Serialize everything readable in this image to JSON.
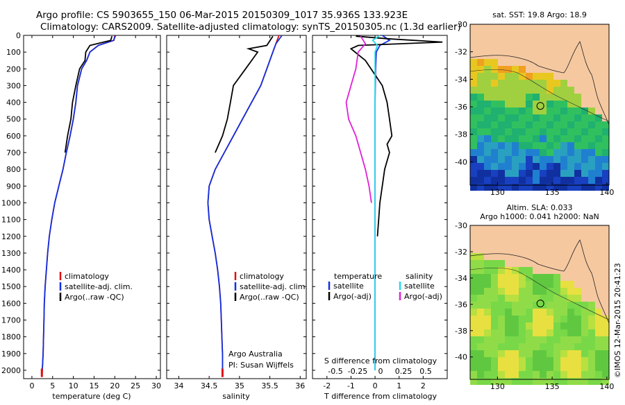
{
  "header": {
    "line1": "Argo profile: CS 5903655_150 06-Mar-2015 20150309_1017 35.936S 133.923E",
    "line2": "Climatology: CARS2009. Satellite-adjusted climatology: synTS_20150305.nc (1.3d earlier)"
  },
  "credit": "©IMOS 12-Mar-2015 20:41:23",
  "colors": {
    "climatology": "#e01010",
    "satellite": "#1030e0",
    "argo": "#000000",
    "salinity_satellite": "#20d8e8",
    "salinity_argo": "#e020d8",
    "land": "#f5c8a0"
  },
  "chart_data": [
    {
      "type": "line",
      "id": "temperature",
      "xlabel": "temperature (deg C)",
      "ylabel": "",
      "xlim": [
        -2,
        31
      ],
      "ylim": [
        2050,
        0
      ],
      "xticks": [
        0,
        5,
        10,
        15,
        20,
        25,
        30
      ],
      "yticks": [
        0,
        100,
        200,
        300,
        400,
        500,
        600,
        700,
        800,
        900,
        1000,
        1100,
        1200,
        1300,
        1400,
        1500,
        1600,
        1700,
        1800,
        1900,
        2000
      ],
      "legend": {
        "position": "center-left",
        "entries": [
          "climatology",
          "satellite-adj. clim.",
          "Argo(..raw -QC)"
        ]
      },
      "series": [
        {
          "name": "climatology",
          "color_key": "climatology",
          "x": [
            20.0,
            19.8,
            16.0,
            14.0,
            13.2,
            12.0,
            11.0,
            10.6,
            10.0,
            9.2,
            8.3,
            7.5,
            6.5,
            5.5,
            4.8,
            4.2,
            3.8,
            3.5,
            3.2,
            3.0,
            2.9,
            2.8,
            2.7,
            2.6,
            2.5,
            2.4
          ],
          "y": [
            0,
            30,
            60,
            100,
            150,
            200,
            300,
            400,
            500,
            600,
            700,
            800,
            900,
            1000,
            1100,
            1200,
            1300,
            1400,
            1500,
            1600,
            1700,
            1800,
            1900,
            1950,
            2000,
            2040
          ]
        },
        {
          "name": "satellite-adj. clim.",
          "color_key": "satellite",
          "x": [
            20.2,
            19.7,
            16.0,
            14.0,
            13.2,
            12.0,
            11.0,
            10.6,
            10.0,
            9.2,
            8.3,
            7.5,
            6.5,
            5.5,
            4.8,
            4.2,
            3.8,
            3.5,
            3.2,
            3.0,
            2.9,
            2.8,
            2.7,
            2.6,
            2.5,
            2.4
          ],
          "y": [
            0,
            30,
            60,
            100,
            150,
            200,
            300,
            400,
            500,
            600,
            700,
            800,
            900,
            1000,
            1100,
            1200,
            1300,
            1400,
            1500,
            1600,
            1700,
            1800,
            1900,
            1950,
            2000,
            2040
          ]
        },
        {
          "name": "Argo(..raw -QC)",
          "color_key": "argo",
          "x": [
            19.3,
            19.0,
            14.0,
            13.0,
            12.8,
            11.5,
            10.6,
            9.8,
            9.4,
            8.6,
            8.0
          ],
          "y": [
            5,
            30,
            60,
            100,
            150,
            200,
            300,
            400,
            500,
            600,
            700
          ]
        }
      ]
    },
    {
      "type": "line",
      "id": "salinity",
      "xlabel": "salinity",
      "ylabel": "",
      "xlim": [
        33.8,
        36.1
      ],
      "ylim": [
        2050,
        0
      ],
      "xticks": [
        34,
        34.5,
        35,
        35.5,
        36
      ],
      "legend": {
        "position": "center-right",
        "entries": [
          "climatology",
          "satellite-adj. clim.",
          "Argo(..raw -QC)"
        ]
      },
      "annotation": [
        "Argo Australia",
        "PI: Susan Wijffels"
      ],
      "series": [
        {
          "name": "climatology",
          "color_key": "climatology",
          "x": [
            35.65,
            35.6,
            35.55,
            35.45,
            35.35,
            35.2,
            35.05,
            34.9,
            34.75,
            34.6,
            34.5,
            34.48,
            34.5,
            34.55,
            34.6,
            34.64,
            34.67,
            34.69,
            34.7,
            34.71,
            34.72,
            34.72,
            34.72,
            34.72
          ],
          "y": [
            0,
            50,
            100,
            200,
            300,
            400,
            500,
            600,
            700,
            800,
            900,
            1000,
            1100,
            1200,
            1300,
            1400,
            1500,
            1600,
            1700,
            1800,
            1900,
            1950,
            2000,
            2040
          ]
        },
        {
          "name": "satellite-adj. clim.",
          "color_key": "satellite",
          "x": [
            35.7,
            35.6,
            35.55,
            35.45,
            35.35,
            35.2,
            35.05,
            34.9,
            34.75,
            34.6,
            34.5,
            34.48,
            34.5,
            34.55,
            34.6,
            34.64,
            34.67,
            34.69,
            34.7,
            34.71,
            34.72,
            34.72,
            34.72,
            34.72
          ],
          "y": [
            0,
            50,
            100,
            200,
            300,
            400,
            500,
            600,
            700,
            800,
            900,
            1000,
            1100,
            1200,
            1300,
            1400,
            1500,
            1600,
            1700,
            1800,
            1900,
            1950,
            2000,
            2040
          ]
        },
        {
          "name": "Argo(..raw -QC)",
          "color_key": "argo",
          "x": [
            35.55,
            35.45,
            35.15,
            35.3,
            35.1,
            34.9,
            34.85,
            34.8,
            34.72,
            34.6
          ],
          "y": [
            5,
            60,
            80,
            100,
            200,
            300,
            400,
            500,
            600,
            700
          ]
        }
      ]
    },
    {
      "type": "line",
      "id": "difference",
      "xlabel": "T difference from climatology",
      "top_label": "S difference from climatology",
      "xlim": [
        -2.6,
        3.0
      ],
      "ylim": [
        2050,
        0
      ],
      "xticks": [
        -2,
        -1,
        0,
        1,
        2
      ],
      "s_ticks": [
        "-0.5",
        "-0.25",
        "0",
        "0.25",
        "0.5"
      ],
      "legend": {
        "position": "center",
        "temperature_title": "temperature",
        "salinity_title": "salinity",
        "entries": [
          "satellite",
          "Argo(-adj)",
          "satellite",
          "Argo(-adj)"
        ]
      },
      "series": [
        {
          "name": "temperature satellite",
          "color_key": "satellite",
          "x": [
            0.3,
            0.6,
            0.2,
            0.05,
            0.02,
            0.0,
            0.0,
            0.0
          ],
          "y": [
            0,
            30,
            60,
            100,
            200,
            400,
            800,
            2000
          ]
        },
        {
          "name": "temperature Argo(-adj)",
          "color_key": "argo",
          "x": [
            -0.8,
            0.5,
            2.8,
            -0.7,
            -1.0,
            -0.4,
            0.3,
            0.5,
            0.6,
            0.7,
            0.5,
            0.6,
            0.4,
            0.3,
            0.2,
            0.15,
            0.1
          ],
          "y": [
            5,
            20,
            40,
            60,
            80,
            150,
            300,
            400,
            500,
            600,
            650,
            700,
            800,
            900,
            1000,
            1100,
            1200
          ]
        },
        {
          "name": "salinity satellite",
          "color_key": "salinity_satellite",
          "x": [
            0.2,
            -0.1,
            0.1,
            0.0,
            0.0,
            0.0,
            0.0
          ],
          "y": [
            0,
            30,
            60,
            100,
            300,
            800,
            2000
          ]
        },
        {
          "name": "salinity Argo(-adj)",
          "color_key": "salinity_argo",
          "x": [
            -0.6,
            -0.4,
            -0.7,
            -0.8,
            -1.0,
            -1.2,
            -1.1,
            -0.8,
            -0.6,
            -0.4,
            -0.25,
            -0.15
          ],
          "y": [
            5,
            50,
            100,
            200,
            300,
            400,
            500,
            600,
            700,
            800,
            900,
            1000
          ]
        }
      ]
    },
    {
      "type": "heatmap",
      "id": "sst_map",
      "title": "sat. SST: 19.8 Argo: 18.9",
      "xlim": [
        127.5,
        140.2
      ],
      "ylim": [
        -41.7,
        -30.0
      ],
      "xticks": [
        130,
        135,
        140
      ],
      "yticks": [
        -30,
        -32,
        -34,
        -36,
        -38,
        -40
      ],
      "argo_position": {
        "lat": -35.936,
        "lon": 133.923
      },
      "values_note": "SST colour field, warm (orange) near the coast to cold (blue) in the south"
    },
    {
      "type": "heatmap",
      "id": "sla_map",
      "title_line1": "Altim. SLA: 0.033",
      "title_line2": "Argo h1000: 0.041 h2000: NaN",
      "xlim": [
        127.5,
        140.2
      ],
      "ylim": [
        -41.7,
        -30.0
      ],
      "xticks": [
        130,
        135,
        140
      ],
      "yticks": [
        -30,
        -32,
        -34,
        -36,
        -38,
        -40
      ],
      "argo_position": {
        "lat": -35.936,
        "lon": 133.923
      },
      "values_note": "sea level anomaly field, mostly green with yellow eddies"
    }
  ]
}
